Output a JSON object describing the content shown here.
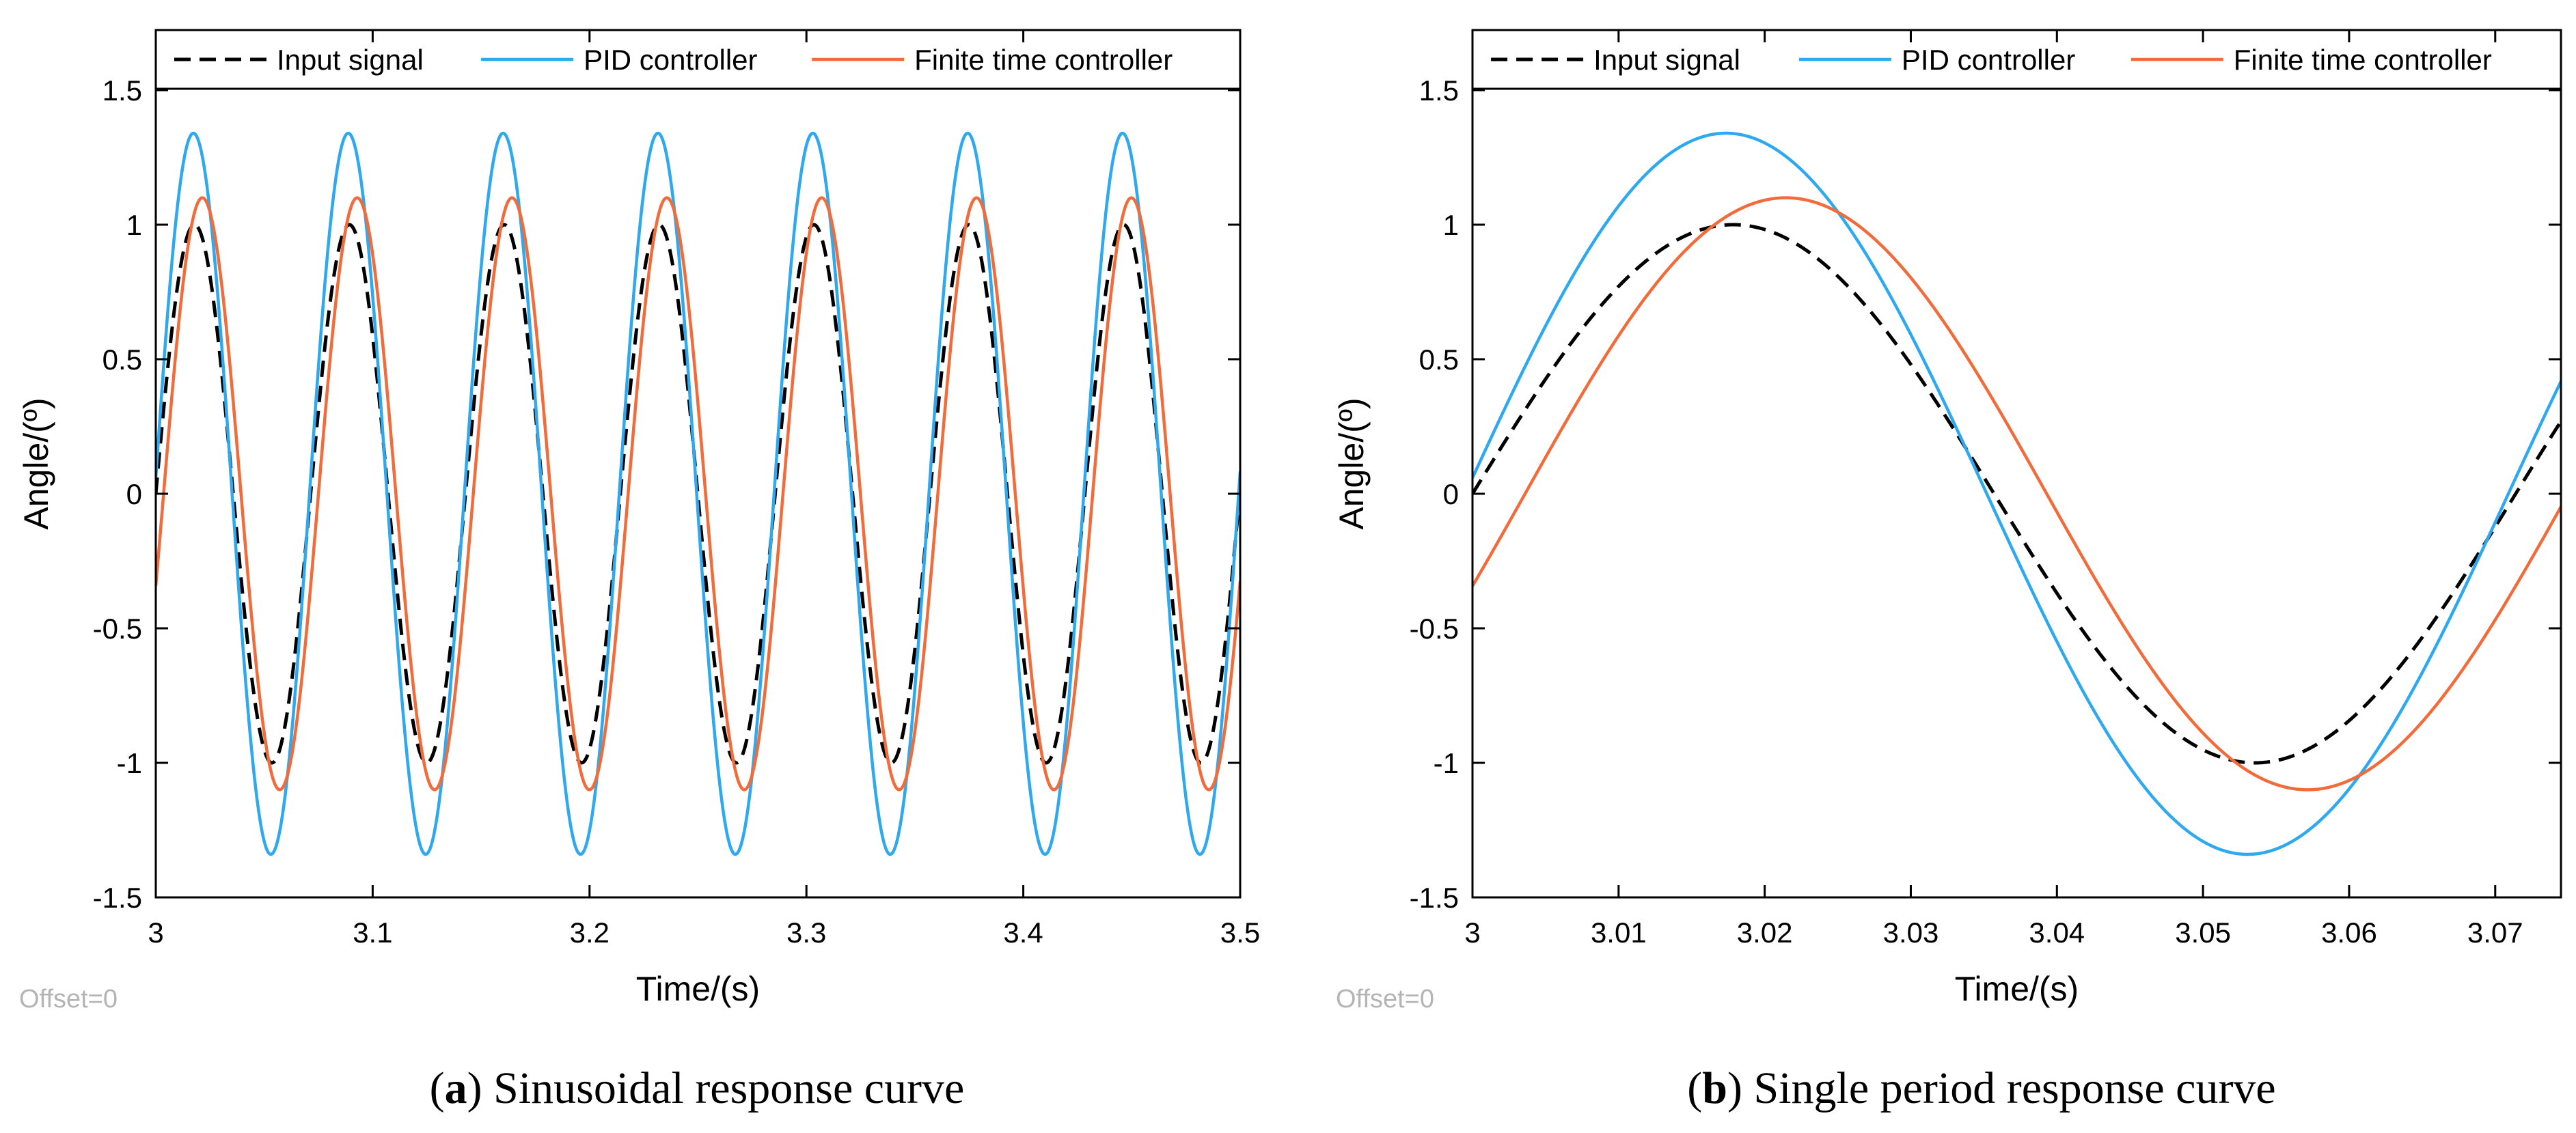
{
  "figure": {
    "panels": [
      {
        "caption_label": "a",
        "caption_text": "Sinusoidal response curve",
        "offset_label": "Offset=0"
      },
      {
        "caption_label": "b",
        "caption_text": "Single period response curve",
        "offset_label": "Offset=0"
      }
    ]
  },
  "colors": {
    "input": "#000000",
    "pid": "#2EA9EF",
    "finite": "#F26B3A",
    "axis": "#000000",
    "offset_text": "#b4b4b4"
  },
  "chart_data": [
    {
      "type": "line",
      "title": "",
      "xlabel": "Time/(s)",
      "ylabel": "Angle/(º)",
      "xlim": [
        3,
        3.5
      ],
      "ylim": [
        -1.5,
        1.5
      ],
      "xticks": [
        "3",
        "3.1",
        "3.2",
        "3.3",
        "3.4",
        "3.5"
      ],
      "yticks": [
        "-1.5",
        "-1",
        "-0.5",
        "0",
        "0.5",
        "1",
        "1.5"
      ],
      "grid": false,
      "legend_position": "top",
      "legend_orientation": "horizontal",
      "series": [
        {
          "name": "Input signal",
          "style": "dashed",
          "color_key": "input",
          "amplitude": 1.0,
          "period": 0.0714,
          "phase_time": 0.0,
          "x_start": 3.0,
          "x_end": 3.5
        },
        {
          "name": "PID controller",
          "style": "solid",
          "color_key": "pid",
          "amplitude": 1.34,
          "period": 0.0714,
          "phase_time": -0.0005,
          "x_start": 3.0,
          "x_end": 3.5
        },
        {
          "name": "Finite time controller",
          "style": "solid",
          "color_key": "finite",
          "amplitude": 1.1,
          "period": 0.0714,
          "phase_time": 0.0036,
          "x_start": 3.0,
          "x_end": 3.5
        }
      ]
    },
    {
      "type": "line",
      "title": "",
      "xlabel": "Time/(s)",
      "ylabel": "Angle/(º)",
      "xlim": [
        3,
        3.0745
      ],
      "ylim": [
        -1.5,
        1.5
      ],
      "xticks": [
        "3",
        "3.01",
        "3.02",
        "3.03",
        "3.04",
        "3.05",
        "3.06",
        "3.07"
      ],
      "yticks": [
        "-1.5",
        "-1",
        "-0.5",
        "0",
        "0.5",
        "1",
        "1.5"
      ],
      "grid": false,
      "legend_position": "top",
      "legend_orientation": "horizontal",
      "series": [
        {
          "name": "Input signal",
          "style": "dashed",
          "color_key": "input",
          "amplitude": 1.0,
          "period": 0.0714,
          "phase_time": 0.0,
          "x_start": 3.0,
          "x_end": 3.0745
        },
        {
          "name": "PID controller",
          "style": "solid",
          "color_key": "pid",
          "amplitude": 1.34,
          "period": 0.0714,
          "phase_time": -0.0005,
          "x_start": 3.0,
          "x_end": 3.0745
        },
        {
          "name": "Finite time controller",
          "style": "solid",
          "color_key": "finite",
          "amplitude": 1.1,
          "period": 0.0714,
          "phase_time": 0.0036,
          "x_start": 3.0,
          "x_end": 3.0745
        }
      ]
    }
  ]
}
